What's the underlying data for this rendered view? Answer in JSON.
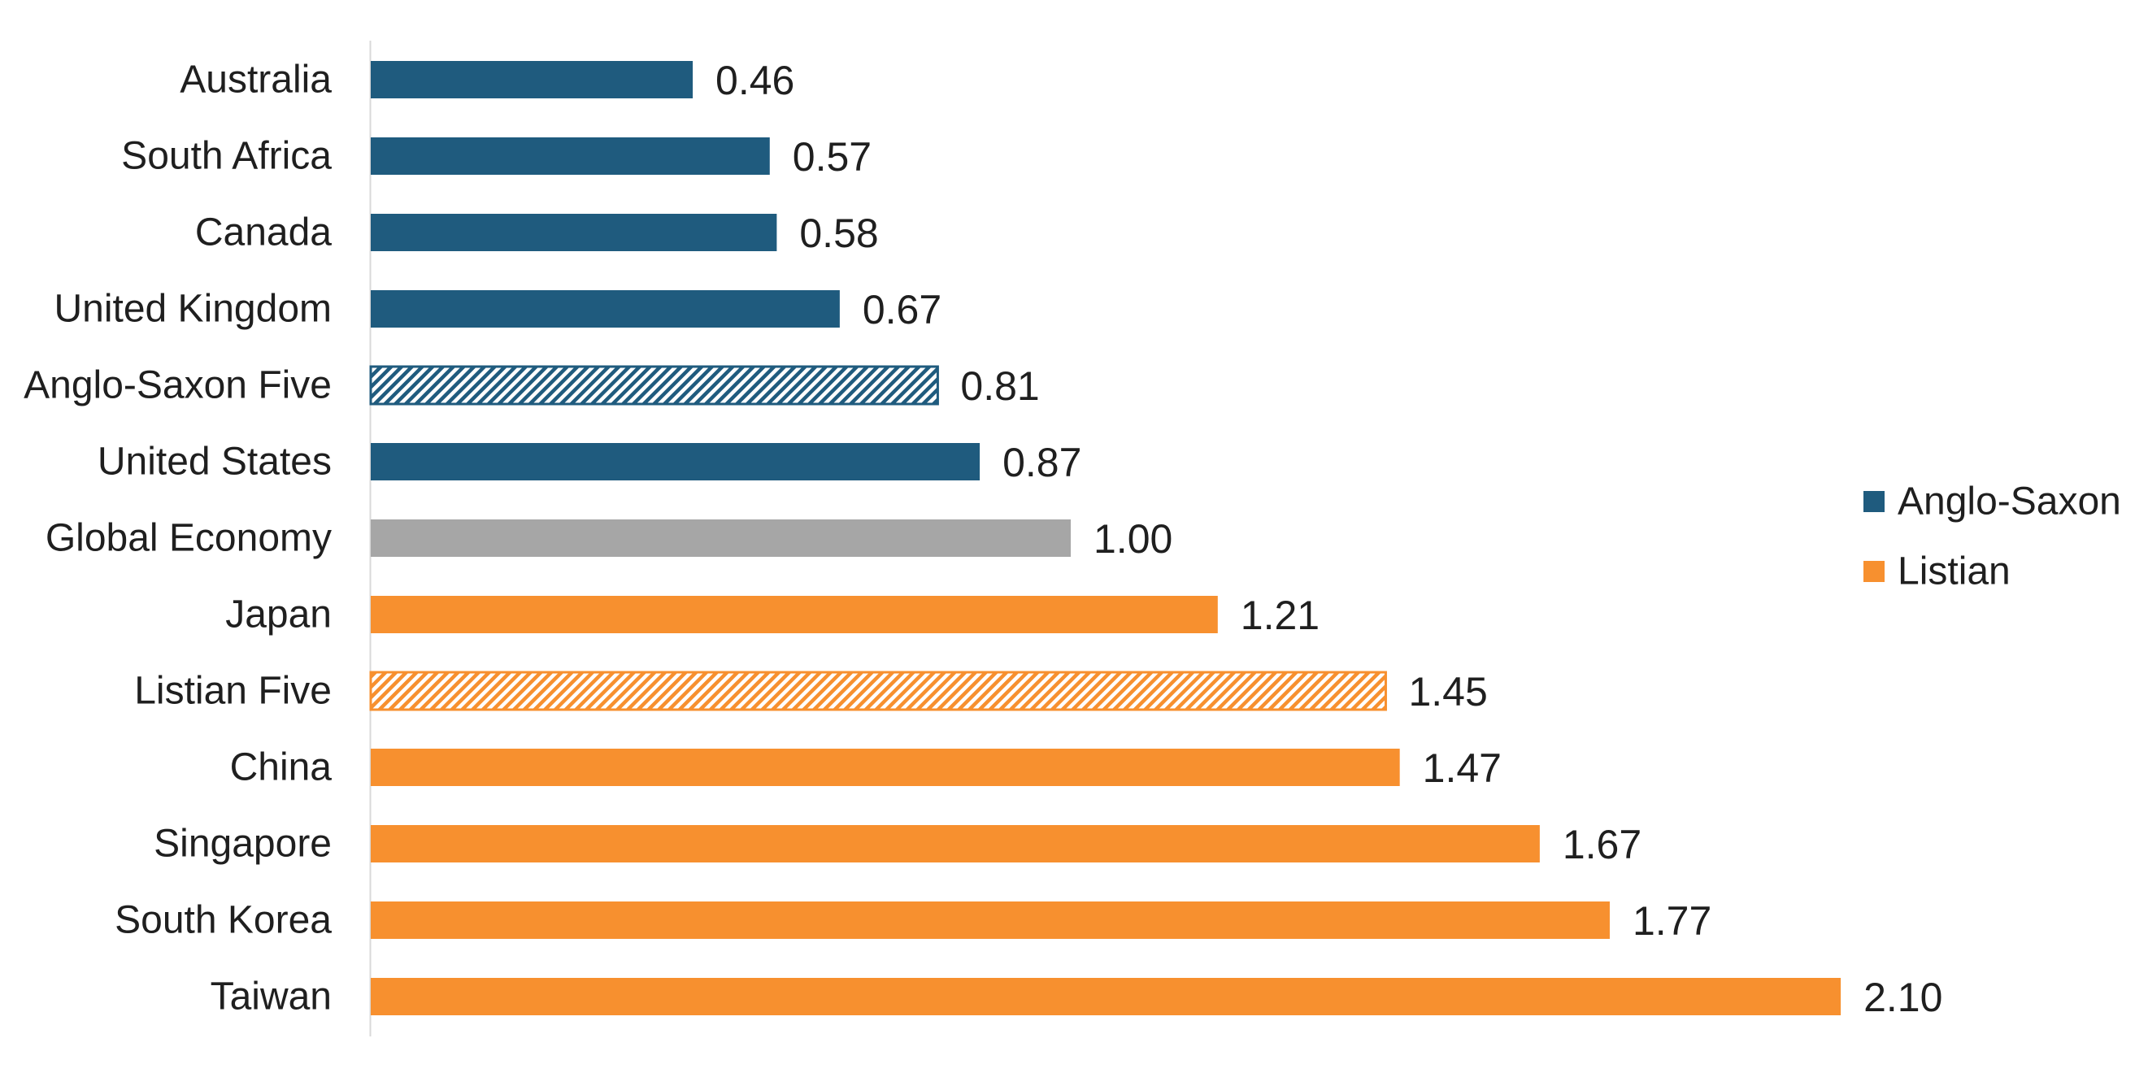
{
  "chart_data": {
    "type": "bar",
    "orientation": "horizontal",
    "title": "",
    "xlabel": "",
    "ylabel": "",
    "xlim": [
      0,
      2.3
    ],
    "grid": false,
    "legend_position": "right",
    "categories": [
      "Australia",
      "South Africa",
      "Canada",
      "United Kingdom",
      "Anglo-Saxon Five",
      "United States",
      "Global Economy",
      "Japan",
      "Listian Five",
      "China",
      "Singapore",
      "South Korea",
      "Taiwan"
    ],
    "values": [
      0.46,
      0.57,
      0.58,
      0.67,
      0.81,
      0.87,
      1.0,
      1.21,
      1.45,
      1.47,
      1.67,
      1.77,
      2.1
    ],
    "value_labels": [
      "0.46",
      "0.57",
      "0.58",
      "0.67",
      "0.81",
      "0.87",
      "1.00",
      "1.21",
      "1.45",
      "1.47",
      "1.67",
      "1.77",
      "2.10"
    ],
    "bar_groups": [
      "Anglo-Saxon",
      "Anglo-Saxon",
      "Anglo-Saxon",
      "Anglo-Saxon",
      "Anglo-Saxon",
      "Anglo-Saxon",
      "Global",
      "Listian",
      "Listian",
      "Listian",
      "Listian",
      "Listian",
      "Listian"
    ],
    "bar_hatched": [
      false,
      false,
      false,
      false,
      true,
      false,
      false,
      false,
      true,
      false,
      false,
      false,
      false
    ],
    "legend": [
      {
        "name": "Anglo-Saxon",
        "color": "#1f5b7e"
      },
      {
        "name": "Listian",
        "color": "#f7902f"
      }
    ],
    "colors": {
      "Anglo-Saxon": "#1f5b7e",
      "Listian": "#f7902f",
      "Global": "#a6a6a6",
      "axis": "#d9d9d9"
    }
  }
}
